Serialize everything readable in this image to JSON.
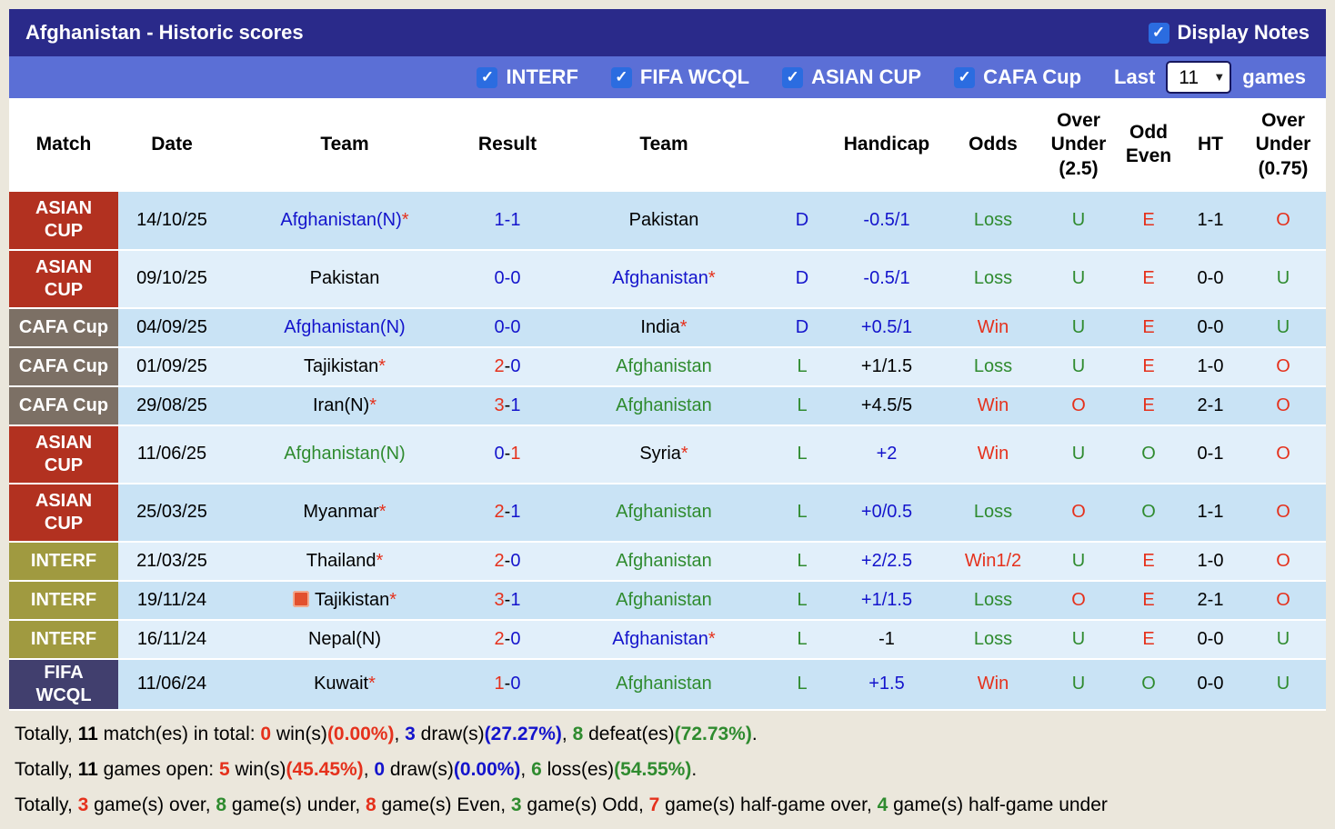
{
  "palette": {
    "blue": "#1414cc",
    "red": "#e5311c",
    "green": "#2f8b2f",
    "black": "#000000",
    "navy_bar": "#2a2a8a",
    "filter_bar": "#5b6fd6",
    "checkbox_blue": "#2b6ce0",
    "row_dark": "#c9e3f5",
    "row_light": "#e1effa"
  },
  "icons": {
    "check": "✓",
    "chevron_down": "▼"
  },
  "header": {
    "title": "Afghanistan - Historic scores",
    "display_notes_label": "Display Notes"
  },
  "filters": {
    "competitions": [
      {
        "label": "INTERF",
        "checked": true
      },
      {
        "label": "FIFA WCQL",
        "checked": true
      },
      {
        "label": "ASIAN CUP",
        "checked": true
      },
      {
        "label": "CAFA Cup",
        "checked": true
      }
    ],
    "last_label": "Last",
    "games_count": "11",
    "games_label": "games"
  },
  "table": {
    "headers": [
      "Match",
      "Date",
      "Team",
      "Result",
      "Team",
      "",
      "Handicap",
      "Odds",
      "Over Under (2.5)",
      "Odd Even",
      "HT",
      "Over Under (0.75)"
    ],
    "rows": [
      {
        "competition": "ASIAN CUP",
        "competition_color": "#b23120",
        "date": "14/10/25",
        "home": {
          "name": "Afghanistan(N)",
          "color": "blue",
          "star": true
        },
        "result": {
          "home": "1",
          "away": "1",
          "home_color": "blue",
          "away_color": "blue"
        },
        "away": {
          "name": "Pakistan",
          "color": "black",
          "star": false
        },
        "hc_result": {
          "text": "D",
          "color": "blue"
        },
        "handicap": {
          "text": "-0.5/1",
          "color": "blue"
        },
        "odds": {
          "text": "Loss",
          "color": "green"
        },
        "ou25": {
          "text": "U",
          "color": "green"
        },
        "odd_even": {
          "text": "E",
          "color": "red"
        },
        "ht": "1-1",
        "ou075": {
          "text": "O",
          "color": "red"
        }
      },
      {
        "competition": "ASIAN CUP",
        "competition_color": "#b23120",
        "date": "09/10/25",
        "home": {
          "name": "Pakistan",
          "color": "black",
          "star": false
        },
        "result": {
          "home": "0",
          "away": "0",
          "home_color": "blue",
          "away_color": "blue"
        },
        "away": {
          "name": "Afghanistan",
          "color": "blue",
          "star": true
        },
        "hc_result": {
          "text": "D",
          "color": "blue"
        },
        "handicap": {
          "text": "-0.5/1",
          "color": "blue"
        },
        "odds": {
          "text": "Loss",
          "color": "green"
        },
        "ou25": {
          "text": "U",
          "color": "green"
        },
        "odd_even": {
          "text": "E",
          "color": "red"
        },
        "ht": "0-0",
        "ou075": {
          "text": "U",
          "color": "green"
        }
      },
      {
        "competition": "CAFA Cup",
        "competition_color": "#7c7065",
        "date": "04/09/25",
        "home": {
          "name": "Afghanistan(N)",
          "color": "blue",
          "star": false
        },
        "result": {
          "home": "0",
          "away": "0",
          "home_color": "blue",
          "away_color": "blue"
        },
        "away": {
          "name": "India",
          "color": "black",
          "star": true
        },
        "hc_result": {
          "text": "D",
          "color": "blue"
        },
        "handicap": {
          "text": "+0.5/1",
          "color": "blue"
        },
        "odds": {
          "text": "Win",
          "color": "red"
        },
        "ou25": {
          "text": "U",
          "color": "green"
        },
        "odd_even": {
          "text": "E",
          "color": "red"
        },
        "ht": "0-0",
        "ou075": {
          "text": "U",
          "color": "green"
        }
      },
      {
        "competition": "CAFA Cup",
        "competition_color": "#7c7065",
        "date": "01/09/25",
        "home": {
          "name": "Tajikistan",
          "color": "black",
          "star": true
        },
        "result": {
          "home": "2",
          "away": "0",
          "home_color": "red",
          "away_color": "blue"
        },
        "away": {
          "name": "Afghanistan",
          "color": "green",
          "star": false
        },
        "hc_result": {
          "text": "L",
          "color": "green"
        },
        "handicap": {
          "text": "+1/1.5",
          "color": "black"
        },
        "odds": {
          "text": "Loss",
          "color": "green"
        },
        "ou25": {
          "text": "U",
          "color": "green"
        },
        "odd_even": {
          "text": "E",
          "color": "red"
        },
        "ht": "1-0",
        "ou075": {
          "text": "O",
          "color": "red"
        }
      },
      {
        "competition": "CAFA Cup",
        "competition_color": "#7c7065",
        "date": "29/08/25",
        "home": {
          "name": "Iran(N)",
          "color": "black",
          "star": true
        },
        "result": {
          "home": "3",
          "away": "1",
          "home_color": "red",
          "away_color": "blue"
        },
        "away": {
          "name": "Afghanistan",
          "color": "green",
          "star": false
        },
        "hc_result": {
          "text": "L",
          "color": "green"
        },
        "handicap": {
          "text": "+4.5/5",
          "color": "black"
        },
        "odds": {
          "text": "Win",
          "color": "red"
        },
        "ou25": {
          "text": "O",
          "color": "red"
        },
        "odd_even": {
          "text": "E",
          "color": "red"
        },
        "ht": "2-1",
        "ou075": {
          "text": "O",
          "color": "red"
        }
      },
      {
        "competition": "ASIAN CUP",
        "competition_color": "#b23120",
        "date": "11/06/25",
        "home": {
          "name": "Afghanistan(N)",
          "color": "green",
          "star": false
        },
        "result": {
          "home": "0",
          "away": "1",
          "home_color": "blue",
          "away_color": "red"
        },
        "away": {
          "name": "Syria",
          "color": "black",
          "star": true
        },
        "hc_result": {
          "text": "L",
          "color": "green"
        },
        "handicap": {
          "text": "+2",
          "color": "blue"
        },
        "odds": {
          "text": "Win",
          "color": "red"
        },
        "ou25": {
          "text": "U",
          "color": "green"
        },
        "odd_even": {
          "text": "O",
          "color": "green"
        },
        "ht": "0-1",
        "ou075": {
          "text": "O",
          "color": "red"
        }
      },
      {
        "competition": "ASIAN CUP",
        "competition_color": "#b23120",
        "date": "25/03/25",
        "home": {
          "name": "Myanmar",
          "color": "black",
          "star": true
        },
        "result": {
          "home": "2",
          "away": "1",
          "home_color": "red",
          "away_color": "blue"
        },
        "away": {
          "name": "Afghanistan",
          "color": "green",
          "star": false
        },
        "hc_result": {
          "text": "L",
          "color": "green"
        },
        "handicap": {
          "text": "+0/0.5",
          "color": "blue"
        },
        "odds": {
          "text": "Loss",
          "color": "green"
        },
        "ou25": {
          "text": "O",
          "color": "red"
        },
        "odd_even": {
          "text": "O",
          "color": "green"
        },
        "ht": "1-1",
        "ou075": {
          "text": "O",
          "color": "red"
        }
      },
      {
        "competition": "INTERF",
        "competition_color": "#a09a40",
        "date": "21/03/25",
        "home": {
          "name": "Thailand",
          "color": "black",
          "star": true
        },
        "result": {
          "home": "2",
          "away": "0",
          "home_color": "red",
          "away_color": "blue"
        },
        "away": {
          "name": "Afghanistan",
          "color": "green",
          "star": false
        },
        "hc_result": {
          "text": "L",
          "color": "green"
        },
        "handicap": {
          "text": "+2/2.5",
          "color": "blue"
        },
        "odds": {
          "text": "Win1/2",
          "color": "red"
        },
        "ou25": {
          "text": "U",
          "color": "green"
        },
        "odd_even": {
          "text": "E",
          "color": "red"
        },
        "ht": "1-0",
        "ou075": {
          "text": "O",
          "color": "red"
        }
      },
      {
        "competition": "INTERF",
        "competition_color": "#a09a40",
        "date": "19/11/24",
        "home": {
          "name": "Tajikistan",
          "color": "black",
          "star": true,
          "icon": "red-card-badge"
        },
        "result": {
          "home": "3",
          "away": "1",
          "home_color": "red",
          "away_color": "blue"
        },
        "away": {
          "name": "Afghanistan",
          "color": "green",
          "star": false
        },
        "hc_result": {
          "text": "L",
          "color": "green"
        },
        "handicap": {
          "text": "+1/1.5",
          "color": "blue"
        },
        "odds": {
          "text": "Loss",
          "color": "green"
        },
        "ou25": {
          "text": "O",
          "color": "red"
        },
        "odd_even": {
          "text": "E",
          "color": "red"
        },
        "ht": "2-1",
        "ou075": {
          "text": "O",
          "color": "red"
        }
      },
      {
        "competition": "INTERF",
        "competition_color": "#a09a40",
        "date": "16/11/24",
        "home": {
          "name": "Nepal(N)",
          "color": "black",
          "star": false
        },
        "result": {
          "home": "2",
          "away": "0",
          "home_color": "red",
          "away_color": "blue"
        },
        "away": {
          "name": "Afghanistan",
          "color": "blue",
          "star": true
        },
        "hc_result": {
          "text": "L",
          "color": "green"
        },
        "handicap": {
          "text": "-1",
          "color": "black"
        },
        "odds": {
          "text": "Loss",
          "color": "green"
        },
        "ou25": {
          "text": "U",
          "color": "green"
        },
        "odd_even": {
          "text": "E",
          "color": "red"
        },
        "ht": "0-0",
        "ou075": {
          "text": "U",
          "color": "green"
        }
      },
      {
        "competition": "FIFA WCQL",
        "competition_color": "#413f6e",
        "date": "11/06/24",
        "home": {
          "name": "Kuwait",
          "color": "black",
          "star": true
        },
        "result": {
          "home": "1",
          "away": "0",
          "home_color": "red",
          "away_color": "blue"
        },
        "away": {
          "name": "Afghanistan",
          "color": "green",
          "star": false
        },
        "hc_result": {
          "text": "L",
          "color": "green"
        },
        "handicap": {
          "text": "+1.5",
          "color": "blue"
        },
        "odds": {
          "text": "Win",
          "color": "red"
        },
        "ou25": {
          "text": "U",
          "color": "green"
        },
        "odd_even": {
          "text": "O",
          "color": "green"
        },
        "ht": "0-0",
        "ou075": {
          "text": "U",
          "color": "green"
        }
      }
    ]
  },
  "summary": [
    [
      {
        "t": "Totally, "
      },
      {
        "t": "11",
        "b": true
      },
      {
        "t": " match(es) in total: "
      },
      {
        "t": "0",
        "c": "red",
        "b": true
      },
      {
        "t": " win(s)"
      },
      {
        "t": "(0.00%)",
        "c": "red",
        "b": true
      },
      {
        "t": ", "
      },
      {
        "t": "3",
        "c": "blue",
        "b": true
      },
      {
        "t": " draw(s)"
      },
      {
        "t": "(27.27%)",
        "c": "blue",
        "b": true
      },
      {
        "t": ", "
      },
      {
        "t": "8",
        "c": "green",
        "b": true
      },
      {
        "t": " defeat(es)"
      },
      {
        "t": "(72.73%)",
        "c": "green",
        "b": true
      },
      {
        "t": "."
      }
    ],
    [
      {
        "t": "Totally, "
      },
      {
        "t": "11",
        "b": true
      },
      {
        "t": " games open: "
      },
      {
        "t": "5",
        "c": "red",
        "b": true
      },
      {
        "t": " win(s)"
      },
      {
        "t": "(45.45%)",
        "c": "red",
        "b": true
      },
      {
        "t": ", "
      },
      {
        "t": "0",
        "c": "blue",
        "b": true
      },
      {
        "t": " draw(s)"
      },
      {
        "t": "(0.00%)",
        "c": "blue",
        "b": true
      },
      {
        "t": ", "
      },
      {
        "t": "6",
        "c": "green",
        "b": true
      },
      {
        "t": " loss(es)"
      },
      {
        "t": "(54.55%)",
        "c": "green",
        "b": true
      },
      {
        "t": "."
      }
    ],
    [
      {
        "t": "Totally, "
      },
      {
        "t": "3",
        "c": "red",
        "b": true
      },
      {
        "t": " game(s) over, "
      },
      {
        "t": "8",
        "c": "green",
        "b": true
      },
      {
        "t": " game(s) under, "
      },
      {
        "t": "8",
        "c": "red",
        "b": true
      },
      {
        "t": " game(s) Even, "
      },
      {
        "t": "3",
        "c": "green",
        "b": true
      },
      {
        "t": " game(s) Odd, "
      },
      {
        "t": "7",
        "c": "red",
        "b": true
      },
      {
        "t": " game(s) half-game over, "
      },
      {
        "t": "4",
        "c": "green",
        "b": true
      },
      {
        "t": " game(s) half-game under"
      }
    ]
  ]
}
